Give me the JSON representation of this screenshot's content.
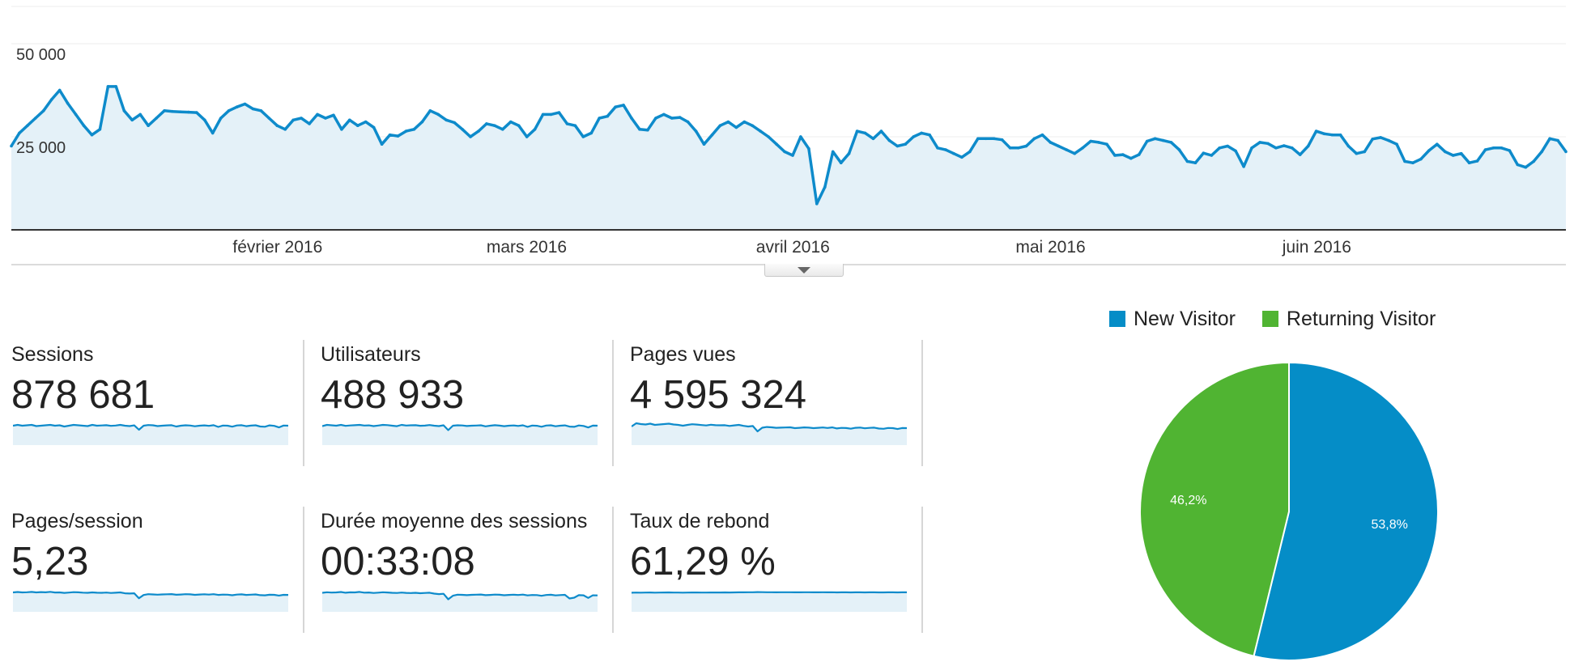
{
  "chart_data": {
    "type": "area",
    "ylim": [
      0,
      60000
    ],
    "y_ticks": [
      "50 000",
      "25 000"
    ],
    "y_tick_values": [
      50000,
      25000
    ],
    "x_tick_labels": [
      "février 2016",
      "mars 2016",
      "avril 2016",
      "mai 2016",
      "juin 2016"
    ],
    "x_start": "2016-01-01",
    "x_end": "2016-06-30",
    "values": [
      22500,
      26000,
      28000,
      30000,
      32000,
      35000,
      37500,
      34000,
      31000,
      28000,
      25500,
      27000,
      38500,
      38500,
      32000,
      29500,
      31000,
      28000,
      30000,
      32000,
      31800,
      31700,
      31600,
      31500,
      29500,
      26000,
      30000,
      32000,
      33000,
      33800,
      32500,
      32000,
      30000,
      28000,
      27000,
      29500,
      30000,
      28500,
      31000,
      30000,
      30800,
      27000,
      29500,
      28000,
      29000,
      27500,
      23000,
      25500,
      25200,
      26500,
      27000,
      29000,
      32000,
      31000,
      29500,
      28800,
      27000,
      25000,
      26500,
      28500,
      28000,
      27000,
      29000,
      28000,
      25000,
      27000,
      31000,
      31000,
      31500,
      28500,
      28000,
      25000,
      26000,
      30000,
      30500,
      33000,
      33500,
      30000,
      27000,
      26800,
      30000,
      31000,
      30000,
      30200,
      29000,
      26500,
      23000,
      25500,
      28000,
      29000,
      27500,
      29000,
      28000,
      26500,
      25000,
      23000,
      21000,
      20000,
      25000,
      21800,
      7000,
      11500,
      21000,
      18000,
      20500,
      26500,
      26000,
      24500,
      26500,
      24000,
      22500,
      23000,
      25000,
      26000,
      25500,
      22000,
      21500,
      20500,
      19500,
      21000,
      24500,
      24500,
      24500,
      24200,
      22000,
      22000,
      22500,
      24500,
      25500,
      23500,
      22500,
      21500,
      20500,
      22000,
      23800,
      23500,
      23000,
      20000,
      20200,
      19200,
      20200,
      23800,
      24500,
      24000,
      23500,
      21500,
      18400,
      18000,
      20600,
      20000,
      22000,
      22500,
      21200,
      17000,
      22000,
      23500,
      23200,
      22000,
      22600,
      22000,
      20200,
      22500,
      26500,
      25800,
      25500,
      25500,
      22500,
      20500,
      21000,
      24400,
      24800,
      24000,
      23000,
      18400,
      18000,
      19000,
      21300,
      23000,
      21000,
      20000,
      20500,
      18000,
      18500,
      21500,
      22000,
      22000,
      21300,
      17500,
      16800,
      18400,
      21000,
      24500,
      24000,
      21000
    ],
    "fill_color": "#e4f1f8",
    "line_color": "#0e8bcb"
  },
  "collapse_toggle": {
    "icon": "triangle-down"
  },
  "metrics": [
    {
      "label": "Sessions",
      "value": "878 681",
      "trend": [
        20,
        21,
        20,
        20.5,
        21,
        19.5,
        20,
        20.5,
        21,
        20,
        20.5,
        19,
        20,
        21,
        20.5,
        20,
        19.5,
        21,
        20,
        20.3,
        20.6,
        19.8,
        20.2,
        21,
        20,
        19.5,
        20.4,
        15,
        20,
        20.8,
        20.5,
        19.5,
        20,
        20.4,
        20.6,
        19,
        20,
        20.5,
        20.2,
        19.3,
        20,
        20.4,
        19.8,
        20.6,
        18.5,
        20.2,
        20,
        18.8,
        20.3,
        20.6,
        19.4,
        20.1,
        20.5,
        19,
        18.7,
        20.4,
        19.8,
        17.9,
        20.2,
        20
      ]
    },
    {
      "label": "Utilisateurs",
      "value": "488 933",
      "trend": [
        19.5,
        21,
        20.5,
        20,
        21,
        19.8,
        20.3,
        20.6,
        21,
        20.2,
        20.4,
        19.5,
        20.2,
        21,
        20.7,
        20,
        19.4,
        21,
        20.2,
        20.5,
        20.6,
        19.9,
        20.1,
        20.8,
        20,
        19.5,
        20.5,
        14.5,
        20,
        20.5,
        20.3,
        19.6,
        20,
        20.2,
        20.5,
        19.2,
        20,
        20.6,
        20.1,
        19.4,
        20,
        20.3,
        19.7,
        20.5,
        18.6,
        20.2,
        19.9,
        18.7,
        20.2,
        20.5,
        19.3,
        20,
        20.4,
        18.9,
        18.6,
        20.3,
        19.7,
        17.8,
        20.1,
        20
      ]
    },
    {
      "label": "Pages vues",
      "value": "4 595 324",
      "trend": [
        19,
        23,
        22,
        21.5,
        22.5,
        21,
        21.5,
        22,
        22.5,
        21.5,
        21,
        20,
        21,
        21.8,
        21.4,
        20.8,
        20.3,
        21.2,
        20.6,
        20.5,
        20.6,
        19.7,
        20.4,
        21,
        19.8,
        19,
        19.6,
        13,
        17.5,
        18.4,
        18,
        17.4,
        17.6,
        17.8,
        18,
        17,
        17.4,
        17.9,
        17.6,
        17,
        17.4,
        17.8,
        17.2,
        17.9,
        16.6,
        17.3,
        17.1,
        16.3,
        17.4,
        17.7,
        16.8,
        17.3,
        17.6,
        16.5,
        16.2,
        17.2,
        17,
        15.9,
        17.1,
        17
      ]
    },
    {
      "label": "Pages/session",
      "value": "5,23",
      "trend": [
        20,
        20.5,
        20,
        20.2,
        20.6,
        20,
        20.4,
        20.1,
        20.7,
        19.9,
        20,
        19.4,
        19.8,
        20.3,
        20.1,
        19.7,
        19.5,
        20,
        19.6,
        19.5,
        19.8,
        19.3,
        19.6,
        20,
        18.9,
        18.6,
        18.9,
        12.8,
        16.8,
        17.8,
        17.5,
        17.2,
        17.5,
        17.7,
        17.9,
        17.1,
        17.4,
        17.8,
        17.6,
        17,
        17.4,
        17.7,
        17.3,
        17.8,
        16.9,
        17.3,
        17.2,
        16.5,
        17.3,
        17.6,
        16.9,
        17.2,
        17.5,
        16.6,
        16.4,
        17.1,
        17,
        16.1,
        17,
        16.9
      ]
    },
    {
      "label": "Durée moyenne des sessions",
      "value": "00:33:08",
      "trend": [
        19.5,
        20.2,
        19.8,
        20,
        20.5,
        19.6,
        20.1,
        20,
        20.6,
        19.7,
        19.9,
        19.3,
        19.7,
        20.2,
        19.9,
        19.5,
        19.3,
        19.8,
        19.4,
        19.2,
        19.5,
        19,
        19.3,
        19.6,
        18.5,
        17.9,
        18.3,
        11.5,
        15.9,
        17.2,
        17,
        16.6,
        17,
        17.2,
        17.4,
        16.6,
        16.9,
        17.3,
        17.1,
        16.5,
        16.9,
        17.2,
        16.8,
        17.3,
        16.3,
        16.8,
        16.7,
        15.8,
        16.8,
        17.1,
        16.3,
        16.7,
        17,
        12.5,
        13.5,
        16.6,
        16.4,
        13.2,
        16.4,
        16.3
      ]
    },
    {
      "label": "Taux de rebond",
      "value": "61,29 %",
      "trend": [
        19.6,
        19.8,
        19.7,
        19.8,
        19.9,
        19.7,
        19.8,
        19.9,
        20,
        19.8,
        19.8,
        19.7,
        19.8,
        19.9,
        19.9,
        19.8,
        19.8,
        19.9,
        19.9,
        19.9,
        20,
        19.9,
        20,
        20.1,
        20.1,
        20.2,
        20.2,
        20.4,
        20.3,
        20.2,
        20.2,
        20.1,
        20.2,
        20.2,
        20.2,
        20.1,
        20.1,
        20.2,
        20.2,
        20.1,
        20.1,
        20.2,
        20.1,
        20.2,
        20,
        20.1,
        20.1,
        20,
        20.1,
        20.1,
        20,
        20.1,
        20.1,
        20,
        20,
        20.1,
        20.1,
        20,
        20.1,
        20.1
      ]
    }
  ],
  "pie": {
    "legend": [
      {
        "label": "New Visitor",
        "color": "#058dc7"
      },
      {
        "label": "Returning Visitor",
        "color": "#50b432"
      }
    ],
    "slices": [
      {
        "label": "New Visitor",
        "value": 53.8,
        "display": "53,8%",
        "color": "#058dc7"
      },
      {
        "label": "Returning Visitor",
        "value": 46.2,
        "display": "46,2%",
        "color": "#50b432"
      }
    ]
  }
}
